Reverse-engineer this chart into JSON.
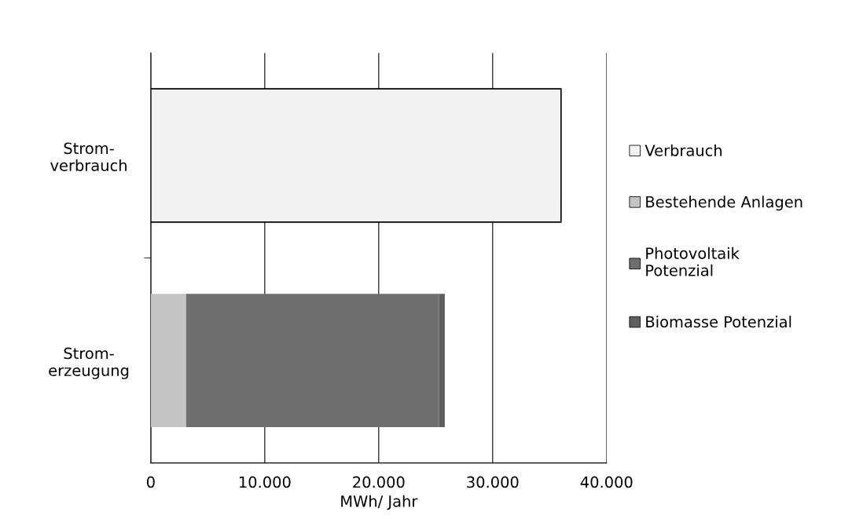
{
  "chart_data": {
    "type": "bar",
    "orientation": "horizontal",
    "stacked": true,
    "categories": [
      "Strom-\nverbrauch",
      "Strom-\nerzeugung"
    ],
    "series": [
      {
        "name": "Verbrauch",
        "color": "#f2f2f2",
        "values": [
          36000,
          null
        ]
      },
      {
        "name": "Bestehende Anlagen",
        "color": "#c4c4c4",
        "values": [
          null,
          3100
        ]
      },
      {
        "name": "Photovoltaik\nPotenzial",
        "color": "#6e6e6e",
        "values": [
          null,
          22200
        ]
      },
      {
        "name": "Biomasse Potenzial",
        "color": "#5f5f5f",
        "values": [
          null,
          500
        ]
      }
    ],
    "xlim": [
      0,
      40000
    ],
    "xticks": [
      0,
      {
        "value": 10000,
        "label": "10.000"
      },
      {
        "value": 20000,
        "label": "20.000"
      },
      {
        "value": 30000,
        "label": "30.000"
      },
      {
        "value": 40000,
        "label": "40.000"
      }
    ],
    "xlabel": "MWh/ Jahr",
    "grid": "x",
    "legend": "right"
  }
}
